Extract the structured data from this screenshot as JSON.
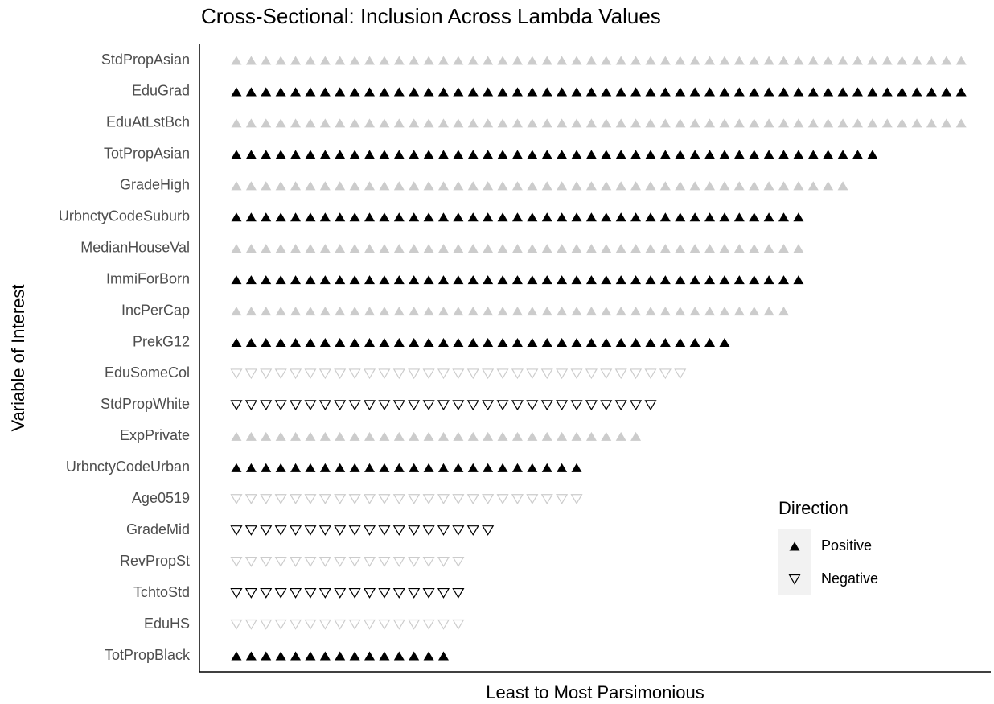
{
  "chart_data": {
    "type": "dot",
    "title": "Cross-Sectional: Inclusion Across Lambda Values",
    "xlabel": "Least to Most Parsimonious",
    "ylabel": "Variable of Interest",
    "categories": [
      "StdPropAsian",
      "EduGrad",
      "EduAtLstBch",
      "TotPropAsian",
      "GradeHigh",
      "UrbnctyCodeSuburb",
      "MedianHouseVal",
      "ImmiForBorn",
      "IncPerCap",
      "PrekG12",
      "EduSomeCol",
      "StdPropWhite",
      "ExpPrivate",
      "UrbnctyCodeUrban",
      "Age0519",
      "GradeMid",
      "RevPropSt",
      "TchtoStd",
      "EduHS",
      "TotPropBlack"
    ],
    "values": [
      50,
      50,
      50,
      44,
      42,
      39,
      39,
      39,
      38,
      34,
      31,
      29,
      28,
      24,
      24,
      18,
      16,
      16,
      16,
      15
    ],
    "directions": [
      "Positive",
      "Positive",
      "Positive",
      "Positive",
      "Positive",
      "Positive",
      "Positive",
      "Positive",
      "Positive",
      "Positive",
      "Negative",
      "Negative",
      "Positive",
      "Positive",
      "Negative",
      "Negative",
      "Negative",
      "Negative",
      "Negative",
      "Positive"
    ],
    "colors": [
      "#cccccc",
      "#000000",
      "#cccccc",
      "#000000",
      "#cccccc",
      "#000000",
      "#cccccc",
      "#000000",
      "#cccccc",
      "#000000",
      "#cccccc",
      "#000000",
      "#cccccc",
      "#000000",
      "#cccccc",
      "#000000",
      "#cccccc",
      "#000000",
      "#cccccc",
      "#000000"
    ],
    "xlim": [
      -1.5,
      52
    ],
    "legend": {
      "title": "Direction",
      "entries": [
        "Positive",
        "Negative"
      ]
    }
  }
}
